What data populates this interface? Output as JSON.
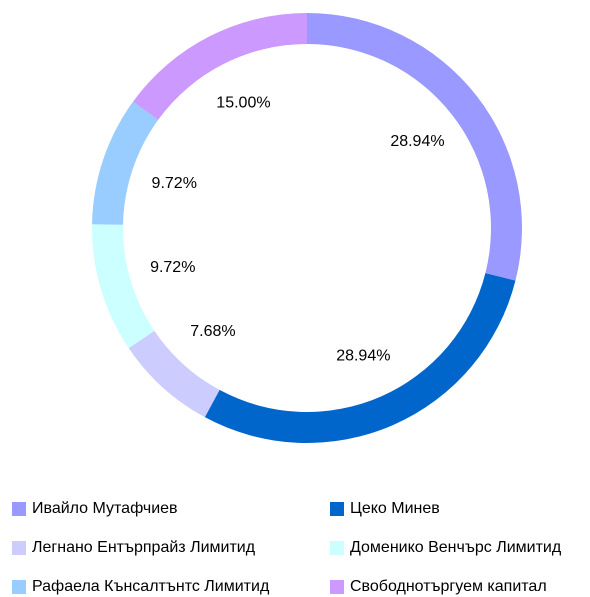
{
  "chart_data": {
    "type": "donut",
    "categories": [
      "Ивайло Мутафчиев",
      "Цеко Минев",
      "Легнано Ентърпрайз Лимитид",
      "Доменико Венчърс Лимитид",
      "Рафаела Кънсалтънтс Лимитид",
      "Свободнотъргуем капитал"
    ],
    "values": [
      28.94,
      28.94,
      7.68,
      9.72,
      9.72,
      15.0
    ],
    "value_labels": [
      "28.94%",
      "28.94%",
      "7.68%",
      "9.72%",
      "9.72%",
      "15.00%"
    ],
    "colors": [
      "#9999ff",
      "#0066cc",
      "#ccccff",
      "#ccffff",
      "#99ccff",
      "#cc99ff"
    ]
  }
}
